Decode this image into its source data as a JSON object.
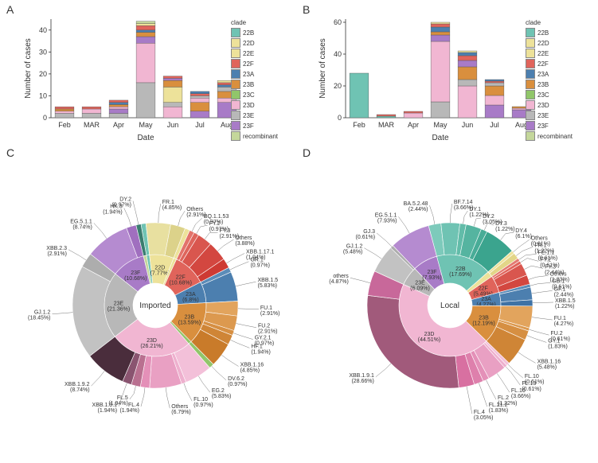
{
  "panels": {
    "A": "A",
    "B": "B",
    "C": "C",
    "D": "D"
  },
  "clade_colors": {
    "22B": "#6fc3b3",
    "22D": "#ede29a",
    "22E": "#ede29a",
    "22F": "#e0645b",
    "23A": "#4c7faf",
    "23B": "#d98f3e",
    "23C": "#91c66a",
    "23D": "#f1b6d2",
    "23E": "#b8b8b8",
    "23F": "#a87bc7",
    "recombinant": "#c4d79b"
  },
  "bar_common": {
    "x_title": "Date",
    "y_title": "Number of cases",
    "months": [
      "Feb",
      "MAR",
      "Apr",
      "May",
      "Jun",
      "Jul",
      "Aug"
    ],
    "legend_title": "clade"
  },
  "barA": {
    "ymax": 45,
    "yticks": [
      0,
      10,
      20,
      30,
      40
    ],
    "stacks": [
      [
        [
          "23E",
          2
        ],
        [
          "23D",
          1
        ],
        [
          "23B",
          1
        ],
        [
          "22F",
          1
        ]
      ],
      [
        [
          "23E",
          2
        ],
        [
          "23D",
          2
        ],
        [
          "22F",
          1
        ]
      ],
      [
        [
          "23E",
          2
        ],
        [
          "23F",
          2
        ],
        [
          "23D",
          1
        ],
        [
          "23B",
          1
        ],
        [
          "23A",
          1
        ],
        [
          "22F",
          1
        ]
      ],
      [
        [
          "23E",
          16
        ],
        [
          "23D",
          18
        ],
        [
          "23F",
          3
        ],
        [
          "23B",
          2
        ],
        [
          "23A",
          1
        ],
        [
          "22F",
          2
        ],
        [
          "22D",
          1
        ],
        [
          "recombinant",
          1
        ]
      ],
      [
        [
          "23D",
          5
        ],
        [
          "23E",
          2
        ],
        [
          "22D",
          7
        ],
        [
          "23B",
          3
        ],
        [
          "23F",
          1
        ],
        [
          "22F",
          1
        ]
      ],
      [
        [
          "23F",
          3
        ],
        [
          "23B",
          4
        ],
        [
          "23D",
          2
        ],
        [
          "23E",
          1
        ],
        [
          "22F",
          1
        ],
        [
          "23A",
          1
        ]
      ],
      [
        [
          "23F",
          7
        ],
        [
          "23D",
          2
        ],
        [
          "23B",
          3
        ],
        [
          "23E",
          2
        ],
        [
          "23A",
          1
        ],
        [
          "22F",
          1
        ],
        [
          "22D",
          1
        ]
      ]
    ]
  },
  "barB": {
    "ymax": 62,
    "yticks": [
      0,
      20,
      40,
      60
    ],
    "stacks": [
      [
        [
          "22B",
          28
        ]
      ],
      [
        [
          "22B",
          1
        ],
        [
          "22F",
          1
        ]
      ],
      [
        [
          "23D",
          3
        ],
        [
          "22F",
          1
        ]
      ],
      [
        [
          "23E",
          10
        ],
        [
          "23D",
          38
        ],
        [
          "23F",
          4
        ],
        [
          "23B",
          2
        ],
        [
          "23A",
          3
        ],
        [
          "22F",
          2
        ],
        [
          "22D",
          1
        ]
      ],
      [
        [
          "23D",
          20
        ],
        [
          "23E",
          4
        ],
        [
          "23B",
          8
        ],
        [
          "23F",
          4
        ],
        [
          "22F",
          3
        ],
        [
          "23A",
          2
        ],
        [
          "22D",
          1
        ]
      ],
      [
        [
          "23F",
          8
        ],
        [
          "23D",
          6
        ],
        [
          "23B",
          6
        ],
        [
          "23E",
          2
        ],
        [
          "22F",
          1
        ],
        [
          "23A",
          1
        ]
      ],
      [
        [
          "23F",
          5
        ],
        [
          "23D",
          1
        ],
        [
          "23B",
          1
        ]
      ]
    ]
  },
  "pieC": {
    "center": "Imported",
    "inner": [
      {
        "label": "22B",
        "pct": 0.97,
        "color": "#6fc3b3"
      },
      {
        "label": "22D",
        "pct": 7.77,
        "color": "#ede29a"
      },
      {
        "label": "22E",
        "pct": 0.97,
        "color": "#ede29a"
      },
      {
        "label": "22F",
        "pct": 10.68,
        "color": "#e0645b"
      },
      {
        "label": "23A",
        "pct": 6.8,
        "color": "#4c7faf"
      },
      {
        "label": "23B",
        "pct": 13.59,
        "color": "#d98f3e"
      },
      {
        "label": "23C",
        "pct": 0.97,
        "color": "#91c66a"
      },
      {
        "label": "23D",
        "pct": 26.21,
        "color": "#f1b6d2"
      },
      {
        "label": "23E",
        "pct": 21.36,
        "color": "#b8b8b8"
      },
      {
        "label": "23F",
        "pct": 10.68,
        "color": "#a87bc7"
      },
      {
        "label": "Recombinant",
        "pct": 0.97,
        "color": "#c4d79b"
      }
    ],
    "outer": [
      {
        "p": "22B",
        "label": "",
        "pct": 0.97,
        "color": "#6fc3b3"
      },
      {
        "p": "22D",
        "label": "FR.1",
        "pct": 4.85,
        "color": "#e8e0a0"
      },
      {
        "p": "22D",
        "label": "Others",
        "pct": 2.91,
        "color": "#dcd28a"
      },
      {
        "p": "22E",
        "label": "",
        "pct": 0.97,
        "color": "#ede29a"
      },
      {
        "p": "22F",
        "label": "BQ.1.1.53",
        "pct": 0.97,
        "color": "#e3736b"
      },
      {
        "p": "22F",
        "label": "FY.2",
        "pct": 0.97,
        "color": "#de655c"
      },
      {
        "p": "22F",
        "label": "FY.3",
        "pct": 2.91,
        "color": "#d9564e"
      },
      {
        "p": "22F",
        "label": "Others",
        "pct": 3.88,
        "color": "#d34740"
      },
      {
        "p": "22F",
        "label": "XBB.1.17.1",
        "pct": 1.94,
        "color": "#ce3a33"
      },
      {
        "p": "23A",
        "label": "GR.1",
        "pct": 0.97,
        "color": "#5b8cb8"
      },
      {
        "p": "23A",
        "label": "XBB.1.5",
        "pct": 5.83,
        "color": "#4c7faf"
      },
      {
        "p": "23B",
        "label": "FU.1",
        "pct": 2.91,
        "color": "#e2a45d"
      },
      {
        "p": "23B",
        "label": "FU.2",
        "pct": 2.91,
        "color": "#dc994f"
      },
      {
        "p": "23B",
        "label": "GY.2.1",
        "pct": 0.97,
        "color": "#d68f42"
      },
      {
        "p": "23B",
        "label": "HF.1",
        "pct": 1.94,
        "color": "#cf8536"
      },
      {
        "p": "23B",
        "label": "XBB.1.16",
        "pct": 4.85,
        "color": "#c97b2a"
      },
      {
        "p": "23C",
        "label": "DV.6.2",
        "pct": 0.97,
        "color": "#91c66a"
      },
      {
        "p": "23D",
        "label": "EG.2",
        "pct": 5.83,
        "color": "#f3c0d9"
      },
      {
        "p": "23D",
        "label": "FL.10",
        "pct": 0.97,
        "color": "#eeb0ce"
      },
      {
        "p": "23D",
        "label": "Others",
        "pct": 6.79,
        "color": "#e9a0c3"
      },
      {
        "p": "23D",
        "label": "FL.4",
        "pct": 1.94,
        "color": "#e490b8"
      },
      {
        "p": "23D",
        "label": "FL.5",
        "pct": 1.94,
        "color": "#b97090"
      },
      {
        "p": "23D",
        "label": "XBB.1.9.1",
        "pct": 1.94,
        "color": "#8a5470"
      },
      {
        "p": "23D",
        "label": "XBB.1.9.2",
        "pct": 8.74,
        "color": "#4a2d3c"
      },
      {
        "p": "23E",
        "label": "GJ.1.2",
        "pct": 18.45,
        "color": "#c2c2c2"
      },
      {
        "p": "23E",
        "label": "XBB.2.3",
        "pct": 2.91,
        "color": "#adadad"
      },
      {
        "p": "23F",
        "label": "EG.5.1.1",
        "pct": 8.74,
        "color": "#b58bd0"
      },
      {
        "p": "23F",
        "label": "HK.3",
        "pct": 1.94,
        "color": "#a06fbf"
      },
      {
        "p": "Recombinant",
        "label": "DY.2",
        "pct": 0.97,
        "color": "#3a7d6f"
      }
    ]
  },
  "pieD": {
    "center": "Local",
    "inner": [
      {
        "label": "22B",
        "pct": 17.69,
        "color": "#6fc3b3"
      },
      {
        "label": "22D",
        "pct": 1.83,
        "color": "#ede29a"
      },
      {
        "label": "22F",
        "pct": 5.49,
        "color": "#e0645b"
      },
      {
        "label": "23A",
        "pct": 4.27,
        "color": "#4c7faf"
      },
      {
        "label": "23B",
        "pct": 12.19,
        "color": "#d98f3e"
      },
      {
        "label": "23D",
        "pct": 44.51,
        "color": "#f1b6d2"
      },
      {
        "label": "23E",
        "pct": 6.09,
        "color": "#b8b8b8"
      },
      {
        "label": "23F",
        "pct": 7.93,
        "color": "#a87bc7"
      }
    ],
    "outer": [
      {
        "p": "22B",
        "label": "BA.5.2.48",
        "pct": 2.44,
        "color": "#7dcabb"
      },
      {
        "p": "22B",
        "label": "BF.7.14",
        "pct": 3.66,
        "color": "#6fc3b3"
      },
      {
        "p": "22B",
        "label": "DY.1",
        "pct": 1.22,
        "color": "#62bca9"
      },
      {
        "p": "22B",
        "label": "DY.2",
        "pct": 3.05,
        "color": "#55b4a0"
      },
      {
        "p": "22B",
        "label": "DY.3",
        "pct": 1.22,
        "color": "#48ac97"
      },
      {
        "p": "22B",
        "label": "DY.4",
        "pct": 6.1,
        "color": "#3ba48e"
      },
      {
        "p": "22D",
        "label": "Others",
        "pct": 0.61,
        "color": "#ede29a"
      },
      {
        "p": "22D",
        "label": "FR.1",
        "pct": 1.22,
        "color": "#e3d688"
      },
      {
        "p": "22F",
        "label": "FE.1.1",
        "pct": 0.61,
        "color": "#e47a72"
      },
      {
        "p": "22F",
        "label": "FY.2",
        "pct": 0.61,
        "color": "#e0645b"
      },
      {
        "p": "22F",
        "label": "FY.3",
        "pct": 2.44,
        "color": "#d9564e"
      },
      {
        "p": "22F",
        "label": "Others",
        "pct": 1.83,
        "color": "#d34740"
      },
      {
        "p": "23A",
        "label": "GB.1",
        "pct": 0.61,
        "color": "#5b8cb8"
      },
      {
        "p": "23A",
        "label": "GF.1",
        "pct": 2.44,
        "color": "#4c7faf"
      },
      {
        "p": "23A",
        "label": "XBB.1.5",
        "pct": 1.22,
        "color": "#3e72a5"
      },
      {
        "p": "23B",
        "label": "FU.1",
        "pct": 4.27,
        "color": "#e2a45d"
      },
      {
        "p": "23B",
        "label": "FU.2",
        "pct": 0.61,
        "color": "#dc994f"
      },
      {
        "p": "23B",
        "label": "GY.1",
        "pct": 1.83,
        "color": "#d68f42"
      },
      {
        "p": "23B",
        "label": "XBB.1.16",
        "pct": 5.48,
        "color": "#cf8536"
      },
      {
        "p": "23D",
        "label": "FL.10",
        "pct": 0.61,
        "color": "#f3c0d9"
      },
      {
        "p": "23D",
        "label": "FL.13",
        "pct": 0.61,
        "color": "#eeb0ce"
      },
      {
        "p": "23D",
        "label": "FL.16",
        "pct": 3.66,
        "color": "#e9a0c3"
      },
      {
        "p": "23D",
        "label": "FL.2",
        "pct": 1.22,
        "color": "#e490b8"
      },
      {
        "p": "23D",
        "label": "FL.21.2",
        "pct": 1.83,
        "color": "#de80ac"
      },
      {
        "p": "23D",
        "label": "FL.4",
        "pct": 3.05,
        "color": "#d870a1"
      },
      {
        "p": "23D",
        "label": "XBB.1.9.1",
        "pct": 28.66,
        "color": "#a15a7b"
      },
      {
        "p": "23D",
        "label": "others",
        "pct": 4.87,
        "color": "#c8689a"
      },
      {
        "p": "23E",
        "label": "GJ.1.2",
        "pct": 5.48,
        "color": "#c2c2c2"
      },
      {
        "p": "23E",
        "label": "GJ.3",
        "pct": 0.61,
        "color": "#adadad"
      },
      {
        "p": "23F",
        "label": "EG.5.1.1",
        "pct": 7.93,
        "color": "#b58bd0"
      }
    ]
  },
  "label_font_size": 7,
  "axis_font_size": 9,
  "title_font_size": 10
}
